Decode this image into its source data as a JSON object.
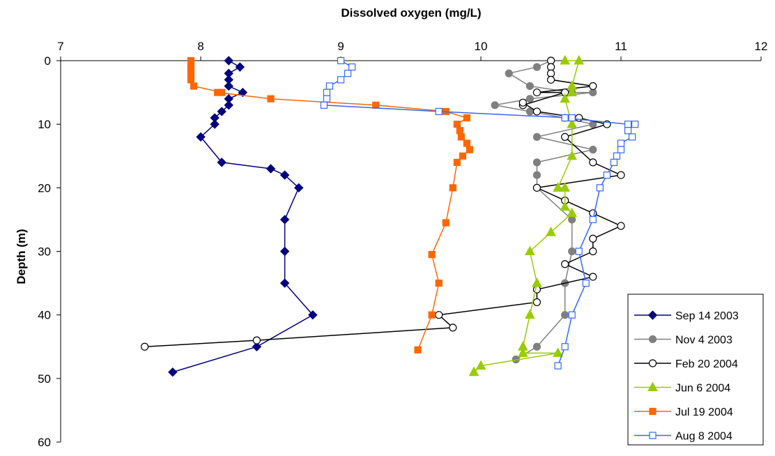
{
  "chart_data": {
    "type": "scatter",
    "title": "",
    "xlabel": "Dissolved oxygen (mg/L)",
    "ylabel": "Depth (m)",
    "xlim": [
      7,
      12
    ],
    "ylim": [
      0,
      60
    ],
    "y_inverted": true,
    "x_axis_position": "top",
    "x_ticks": [
      "7",
      "8",
      "9",
      "10",
      "11",
      "12"
    ],
    "y_ticks": [
      "0",
      "10",
      "20",
      "30",
      "40",
      "50",
      "60"
    ],
    "grid": false,
    "legend": {
      "position": "bottom-right"
    },
    "series": [
      {
        "name": "Sep 14 2003",
        "color": "#000080",
        "marker": "diamond",
        "fill": "filled",
        "points": [
          [
            8.2,
            0
          ],
          [
            8.28,
            1
          ],
          [
            8.2,
            2
          ],
          [
            8.2,
            3
          ],
          [
            8.2,
            4
          ],
          [
            8.3,
            5
          ],
          [
            8.2,
            6
          ],
          [
            8.2,
            7
          ],
          [
            8.15,
            8
          ],
          [
            8.1,
            9
          ],
          [
            8.1,
            10
          ],
          [
            8.0,
            12
          ],
          [
            8.15,
            16
          ],
          [
            8.5,
            17
          ],
          [
            8.6,
            18
          ],
          [
            8.7,
            20
          ],
          [
            8.6,
            25
          ],
          [
            8.6,
            30
          ],
          [
            8.6,
            35
          ],
          [
            8.8,
            40
          ],
          [
            8.4,
            45
          ],
          [
            7.8,
            49
          ]
        ]
      },
      {
        "name": "Nov 4 2003",
        "color": "#808080",
        "marker": "circle",
        "fill": "filled",
        "points": [
          [
            10.5,
            0
          ],
          [
            10.4,
            1
          ],
          [
            10.2,
            2
          ],
          [
            10.35,
            4
          ],
          [
            10.65,
            5
          ],
          [
            10.8,
            5
          ],
          [
            10.35,
            6
          ],
          [
            10.1,
            7
          ],
          [
            10.35,
            8
          ],
          [
            10.6,
            9
          ],
          [
            10.8,
            10
          ],
          [
            10.4,
            12
          ],
          [
            10.8,
            14
          ],
          [
            10.4,
            16
          ],
          [
            10.4,
            18
          ],
          [
            10.4,
            20
          ],
          [
            10.65,
            25
          ],
          [
            10.65,
            30
          ],
          [
            10.6,
            35
          ],
          [
            10.6,
            40
          ],
          [
            10.4,
            45
          ],
          [
            10.25,
            47
          ]
        ]
      },
      {
        "name": "Feb 20 2004",
        "color": "#000000",
        "marker": "circle",
        "fill": "hollow",
        "points": [
          [
            10.5,
            0
          ],
          [
            10.5,
            1
          ],
          [
            10.5,
            2
          ],
          [
            10.5,
            3
          ],
          [
            10.8,
            4
          ],
          [
            10.4,
            5
          ],
          [
            10.6,
            5
          ],
          [
            10.3,
            7
          ],
          [
            10.3,
            6.6
          ],
          [
            10.4,
            8
          ],
          [
            10.7,
            9
          ],
          [
            10.9,
            10
          ],
          [
            10.6,
            12
          ],
          [
            10.8,
            16
          ],
          [
            11.0,
            18
          ],
          [
            10.4,
            20
          ],
          [
            10.6,
            22
          ],
          [
            10.8,
            24
          ],
          [
            11.0,
            26
          ],
          [
            10.8,
            28
          ],
          [
            10.8,
            30
          ],
          [
            10.6,
            32
          ],
          [
            10.8,
            34
          ],
          [
            10.4,
            36
          ],
          [
            10.4,
            38
          ],
          [
            9.7,
            40
          ],
          [
            9.8,
            42
          ],
          [
            8.4,
            44
          ],
          [
            7.6,
            45
          ]
        ]
      },
      {
        "name": "Jun 6 2004",
        "color": "#99CC00",
        "marker": "triangle",
        "fill": "filled",
        "points": [
          [
            10.6,
            0
          ],
          [
            10.7,
            0
          ],
          [
            10.65,
            4
          ],
          [
            10.65,
            5
          ],
          [
            10.6,
            6
          ],
          [
            10.65,
            10
          ],
          [
            10.65,
            15
          ],
          [
            10.55,
            20
          ],
          [
            10.6,
            20
          ],
          [
            10.6,
            23
          ],
          [
            10.65,
            24
          ],
          [
            10.5,
            27
          ],
          [
            10.35,
            30
          ],
          [
            10.4,
            35
          ],
          [
            10.35,
            40
          ],
          [
            10.3,
            45
          ],
          [
            10.3,
            46
          ],
          [
            10.55,
            46
          ],
          [
            10.0,
            48
          ],
          [
            9.95,
            49
          ]
        ]
      },
      {
        "name": "Jul 19 2004",
        "color": "#FF6600",
        "marker": "square",
        "fill": "filled",
        "points": [
          [
            7.93,
            0
          ],
          [
            7.93,
            1
          ],
          [
            7.93,
            2
          ],
          [
            7.93,
            3
          ],
          [
            7.95,
            4
          ],
          [
            8.15,
            5
          ],
          [
            8.12,
            5
          ],
          [
            8.5,
            6
          ],
          [
            9.25,
            7
          ],
          [
            9.75,
            8
          ],
          [
            9.9,
            9
          ],
          [
            9.83,
            10
          ],
          [
            9.85,
            11
          ],
          [
            9.86,
            12
          ],
          [
            9.9,
            13
          ],
          [
            9.92,
            14
          ],
          [
            9.87,
            15
          ],
          [
            9.83,
            16
          ],
          [
            9.8,
            20
          ],
          [
            9.75,
            25.5
          ],
          [
            9.65,
            30.5
          ],
          [
            9.7,
            35
          ],
          [
            9.65,
            40
          ],
          [
            9.55,
            45.5
          ]
        ]
      },
      {
        "name": "Aug 8 2004",
        "color": "#3366FF",
        "marker": "square",
        "fill": "hollow",
        "points": [
          [
            9.0,
            0
          ],
          [
            9.08,
            1
          ],
          [
            9.05,
            2
          ],
          [
            9.0,
            3
          ],
          [
            8.92,
            4
          ],
          [
            8.9,
            5
          ],
          [
            8.9,
            6
          ],
          [
            8.88,
            7
          ],
          [
            9.7,
            8
          ],
          [
            10.65,
            9
          ],
          [
            10.6,
            9
          ],
          [
            11.05,
            10
          ],
          [
            11.1,
            10
          ],
          [
            11.05,
            11
          ],
          [
            11.08,
            12
          ],
          [
            11.0,
            13
          ],
          [
            11.0,
            14
          ],
          [
            10.97,
            15
          ],
          [
            10.95,
            16
          ],
          [
            10.9,
            18
          ],
          [
            10.85,
            20
          ],
          [
            10.8,
            25
          ],
          [
            10.7,
            30
          ],
          [
            10.75,
            35
          ],
          [
            10.65,
            40
          ],
          [
            10.6,
            45
          ],
          [
            10.55,
            48
          ]
        ]
      }
    ]
  }
}
